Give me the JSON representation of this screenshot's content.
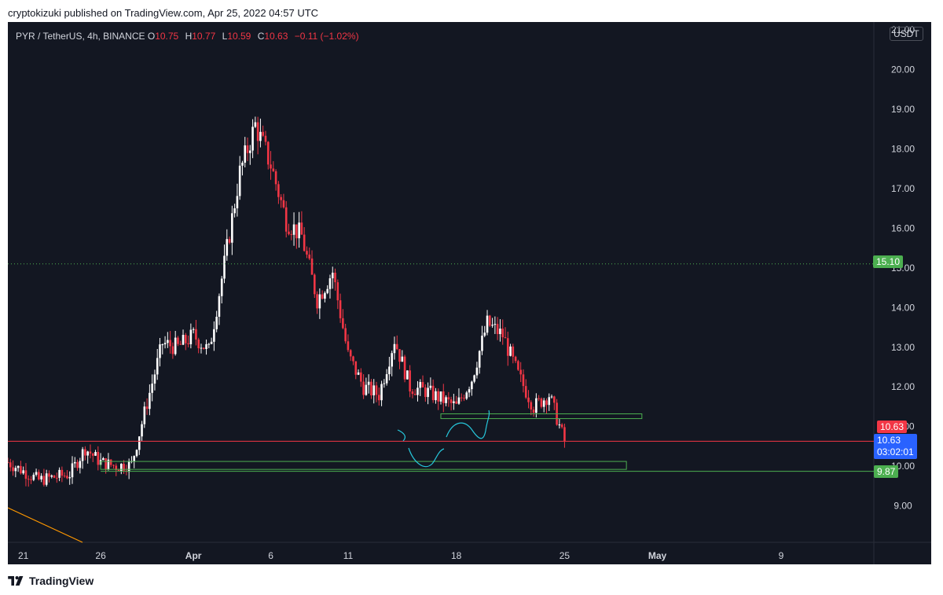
{
  "caption": "cryptokizuki published on TradingView.com, Apr 25, 2022 04:57 UTC",
  "legend": {
    "symbol": "PYR / TetherUS, 4h, BINANCE",
    "o_label": "O",
    "o": "10.75",
    "h_label": "H",
    "h": "10.77",
    "l_label": "L",
    "l": "10.59",
    "c_label": "C",
    "c": "10.63",
    "change": "−0.11 (−1.02%)"
  },
  "currency": "USDT",
  "footer": {
    "brand": "TradingView"
  },
  "price_tags": {
    "level_1510": "15.10",
    "last_close": "10.63",
    "current_price": "10.63",
    "countdown": "03:02:01",
    "level_987": "9.87"
  },
  "colors": {
    "background": "#131722",
    "up": "#ffffff",
    "down": "#f23645",
    "zone": "#4caf50",
    "level": "#4caf50",
    "current_line": "#f23645",
    "current_tag": "#2962ff",
    "sketch": "#26c6da",
    "trendline": "#ff9800"
  },
  "chart_data": {
    "type": "candlestick",
    "title": "PYR / TetherUS, 4h, BINANCE",
    "y_axis": {
      "ticks": [
        9.0,
        10.0,
        11.0,
        12.0,
        13.0,
        14.0,
        15.0,
        16.0,
        17.0,
        18.0,
        19.0,
        20.0,
        21.0
      ],
      "tick_labels": [
        "9.00",
        "10.00",
        "11.00",
        "12.00",
        "13.00",
        "14.00",
        "15.00",
        "16.00",
        "17.00",
        "18.00",
        "19.00",
        "20.00",
        "21.00"
      ],
      "range": [
        8.08,
        21.2
      ]
    },
    "x_axis": {
      "ticks": [
        "21",
        "26",
        "Apr",
        "6",
        "11",
        "18",
        "25",
        "May",
        "9"
      ],
      "tick_dates": [
        "2022-03-21",
        "2022-03-26",
        "2022-04-01",
        "2022-04-06",
        "2022-04-11",
        "2022-04-18",
        "2022-04-25",
        "2022-05-01",
        "2022-05-09"
      ],
      "range": [
        "2022-03-20",
        "2022-05-15"
      ]
    },
    "keypoints": [
      {
        "date": "2022-03-20",
        "price": 10.1
      },
      {
        "date": "2022-03-22",
        "price": 9.65
      },
      {
        "date": "2022-03-24",
        "price": 9.8
      },
      {
        "date": "2022-03-25",
        "price": 10.45
      },
      {
        "date": "2022-03-26",
        "price": 10.1
      },
      {
        "date": "2022-03-27",
        "price": 10.0
      },
      {
        "date": "2022-03-28",
        "price": 10.05
      },
      {
        "date": "2022-03-29",
        "price": 11.6
      },
      {
        "date": "2022-03-30",
        "price": 13.1
      },
      {
        "date": "2022-03-31",
        "price": 13.0
      },
      {
        "date": "2022-04-01",
        "price": 13.3
      },
      {
        "date": "2022-04-02",
        "price": 12.9
      },
      {
        "date": "2022-04-03",
        "price": 15.1
      },
      {
        "date": "2022-04-04",
        "price": 17.4
      },
      {
        "date": "2022-04-05",
        "price": 18.6
      },
      {
        "date": "2022-04-06",
        "price": 17.6
      },
      {
        "date": "2022-04-07",
        "price": 16.2
      },
      {
        "date": "2022-04-08",
        "price": 15.8
      },
      {
        "date": "2022-04-09",
        "price": 14.2
      },
      {
        "date": "2022-04-10",
        "price": 14.9
      },
      {
        "date": "2022-04-11",
        "price": 12.8
      },
      {
        "date": "2022-04-12",
        "price": 12.0
      },
      {
        "date": "2022-04-13",
        "price": 11.8
      },
      {
        "date": "2022-04-14",
        "price": 13.2
      },
      {
        "date": "2022-04-15",
        "price": 12.0
      },
      {
        "date": "2022-04-16",
        "price": 11.9
      },
      {
        "date": "2022-04-17",
        "price": 11.7
      },
      {
        "date": "2022-04-18",
        "price": 11.5
      },
      {
        "date": "2022-04-19",
        "price": 12.2
      },
      {
        "date": "2022-04-20",
        "price": 13.6
      },
      {
        "date": "2022-04-21",
        "price": 13.3
      },
      {
        "date": "2022-04-22",
        "price": 12.3
      },
      {
        "date": "2022-04-23",
        "price": 11.5
      },
      {
        "date": "2022-04-24",
        "price": 11.8
      },
      {
        "date": "2022-04-25",
        "price": 10.63
      }
    ],
    "horizontal_lines": [
      {
        "price": 15.1,
        "style": "dotted"
      },
      {
        "price": 10.63,
        "style": "solid"
      },
      {
        "price": 9.87,
        "style": "solid"
      }
    ],
    "zones": [
      {
        "from": "2022-03-26",
        "to": "2022-04-29",
        "low": 9.92,
        "high": 10.12
      },
      {
        "from": "2022-04-17",
        "to": "2022-04-30",
        "low": 11.2,
        "high": 11.32
      }
    ]
  }
}
